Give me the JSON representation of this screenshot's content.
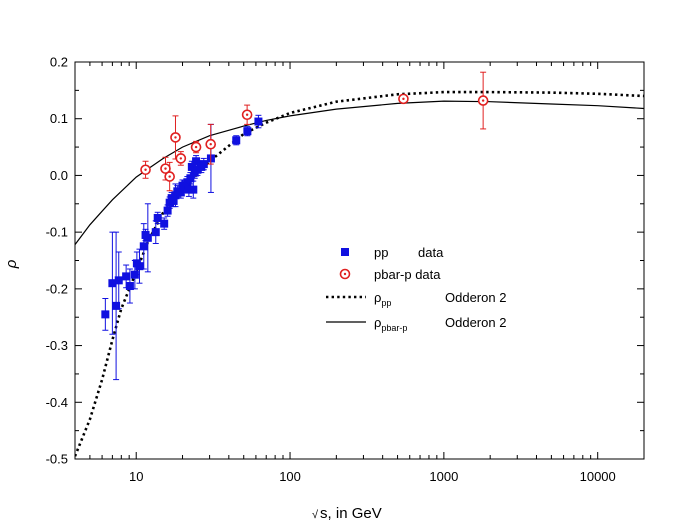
{
  "chart_data": {
    "type": "scatter",
    "title": "",
    "xlabel": "s, in GeV",
    "xlabel_prefix": "√",
    "ylabel": "ρ",
    "xscale": "log",
    "xlim": [
      4,
      20000
    ],
    "ylim": [
      -0.5,
      0.2
    ],
    "x_ticks": [
      10,
      100,
      1000,
      10000
    ],
    "x_tick_labels": [
      "10",
      "100",
      "1000",
      "10000"
    ],
    "y_ticks": [
      -0.5,
      -0.4,
      -0.3,
      -0.2,
      -0.1,
      0.0,
      0.1,
      0.2
    ],
    "y_tick_labels": [
      "-0.5",
      "-0.4",
      "-0.3",
      "-0.2",
      "-0.1",
      "0.0",
      "0.1",
      "0.2"
    ],
    "grid": false,
    "legend_position": "center-right",
    "series": [
      {
        "name": "pp data",
        "kind": "points",
        "marker": "square",
        "color": "#1010e0",
        "points": [
          [
            6.3,
            -0.245,
            0.028
          ],
          [
            7.0,
            -0.19,
            0.09
          ],
          [
            7.4,
            -0.23,
            0.13
          ],
          [
            7.7,
            -0.185,
            0.05
          ],
          [
            8.6,
            -0.178,
            0.02
          ],
          [
            9.1,
            -0.195,
            0.03
          ],
          [
            9.8,
            -0.175,
            0.025
          ],
          [
            10.1,
            -0.155,
            0.02
          ],
          [
            10.5,
            -0.16,
            0.03
          ],
          [
            11.2,
            -0.125,
            0.04
          ],
          [
            11.5,
            -0.105,
            0.01
          ],
          [
            11.9,
            -0.11,
            0.06
          ],
          [
            13.4,
            -0.1,
            0.02
          ],
          [
            13.8,
            -0.075,
            0.01
          ],
          [
            15.2,
            -0.085,
            0.01
          ],
          [
            16.0,
            -0.062,
            0.01
          ],
          [
            16.5,
            -0.048,
            0.01
          ],
          [
            17.0,
            -0.04,
            0.01
          ],
          [
            17.5,
            -0.045,
            0.01
          ],
          [
            18.0,
            -0.035,
            0.02
          ],
          [
            18.5,
            -0.028,
            0.01
          ],
          [
            19.5,
            -0.03,
            0.01
          ],
          [
            20.0,
            -0.018,
            0.01
          ],
          [
            20.5,
            -0.02,
            0.01
          ],
          [
            21.5,
            -0.012,
            0.01
          ],
          [
            22.0,
            -0.025,
            0.012
          ],
          [
            22.5,
            -0.005,
            0.01
          ],
          [
            23.0,
            0.015,
            0.01
          ],
          [
            23.5,
            -0.025,
            0.015
          ],
          [
            24.0,
            0.005,
            0.01
          ],
          [
            24.5,
            0.025,
            0.01
          ],
          [
            25.0,
            0.01,
            0.01
          ],
          [
            26.5,
            0.015,
            0.01
          ],
          [
            27.5,
            0.02,
            0.01
          ],
          [
            30.6,
            0.03,
            0.06
          ],
          [
            44.7,
            0.062,
            0.008
          ],
          [
            52.8,
            0.078,
            0.008
          ],
          [
            62.3,
            0.095,
            0.011
          ]
        ]
      },
      {
        "name": "pbar-p data",
        "kind": "points",
        "marker": "open-circle",
        "color": "#e02020",
        "points": [
          [
            11.5,
            0.01,
            0.015
          ],
          [
            15.5,
            0.012,
            0.02
          ],
          [
            16.5,
            -0.002,
            0.025
          ],
          [
            18.0,
            0.067,
            0.038
          ],
          [
            19.5,
            0.03,
            0.012
          ],
          [
            24.5,
            0.05,
            0.01
          ],
          [
            30.5,
            0.055,
            0.035
          ],
          [
            52.6,
            0.107,
            0.017
          ],
          [
            546,
            0.135,
            0.005
          ],
          [
            1800,
            0.132,
            0.05
          ]
        ]
      },
      {
        "name": "ρpp Odderon 2",
        "kind": "curve",
        "style": "dotted",
        "color": "#000000",
        "x": [
          4,
          5,
          6,
          7,
          8,
          10,
          12,
          15,
          20,
          30,
          50,
          70,
          100,
          200,
          500,
          1000,
          2000,
          5000,
          10000,
          20000
        ],
        "y": [
          -0.495,
          -0.43,
          -0.36,
          -0.29,
          -0.235,
          -0.17,
          -0.115,
          -0.065,
          -0.025,
          0.025,
          0.073,
          0.093,
          0.11,
          0.13,
          0.143,
          0.147,
          0.147,
          0.146,
          0.144,
          0.14
        ]
      },
      {
        "name": "ρpbar-p Odderon 2",
        "kind": "curve",
        "style": "solid",
        "color": "#000000",
        "x": [
          4,
          5,
          6,
          7,
          8,
          10,
          12,
          15,
          20,
          30,
          50,
          70,
          100,
          200,
          500,
          1000,
          2000,
          5000,
          10000,
          20000
        ],
        "y": [
          -0.122,
          -0.087,
          -0.063,
          -0.043,
          -0.028,
          -0.003,
          0.012,
          0.03,
          0.05,
          0.07,
          0.087,
          0.097,
          0.105,
          0.117,
          0.127,
          0.131,
          0.13,
          0.126,
          0.123,
          0.118
        ]
      }
    ],
    "legend": [
      {
        "label": "pp",
        "label_extra": "data",
        "marker": "square"
      },
      {
        "label": "pbar-p data",
        "marker": "open-circle"
      },
      {
        "label": "ρ",
        "sub": "pp",
        "label_extra": "Odderon 2",
        "line": "dotted"
      },
      {
        "label": "ρ",
        "sub": "pbar-p",
        "label_extra": "Odderon 2",
        "line": "solid"
      }
    ]
  }
}
